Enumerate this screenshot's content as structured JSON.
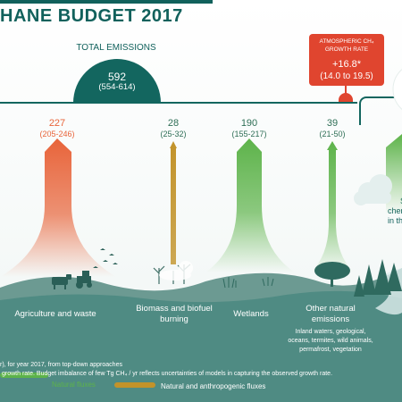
{
  "header": {
    "title": "HANE BUDGET 2017"
  },
  "total": {
    "label": "TOTAL EMISSIONS",
    "value": "592",
    "range": "(554-614)"
  },
  "atmospheric": {
    "label_line1": "ATMOSPHERIC CH₄",
    "label_line2": "GROWTH RATE",
    "value": "+16.8*",
    "range": "(14.0 to 19.5)"
  },
  "sources": [
    {
      "name": "Agriculture and waste",
      "value": "227",
      "range": "(205-246)",
      "color": "#e8643a",
      "kind": "anthropogenic"
    },
    {
      "name_line1": "Biomass and biofuel",
      "name_line2": "burning",
      "value": "28",
      "range": "(25-32)",
      "color": "#c2932a",
      "kind": "mixed"
    },
    {
      "name": "Wetlands",
      "value": "190",
      "range": "(155-217)",
      "color": "#5db34a",
      "kind": "natural"
    },
    {
      "name_line1": "Other natural",
      "name_line2": "emissions",
      "value": "39",
      "range": "(21-50)",
      "color": "#5db34a",
      "kind": "natural",
      "detail_lines": [
        "Inland waters, geological,",
        "oceans, termites, wild animals,",
        "permafrost, vegetation"
      ]
    }
  ],
  "sink_partial": {
    "line1": "S",
    "line2": "chem",
    "line3": "in the"
  },
  "footnotes": {
    "line1": "r),  for year 2017, from top-down approaches",
    "line2": "growth rate. Budget imbalance of few Tg  CH₄ / yr reflects uncertainties of models in capturing the observed growth rate."
  },
  "legend": {
    "natural": "Natural fluxes",
    "mixed": "Natural and anthropogenic fluxes"
  },
  "colors": {
    "teal": "#13665f",
    "orange": "#e8643a",
    "olive": "#c2932a",
    "green": "#5db34a",
    "red": "#e0452f"
  }
}
